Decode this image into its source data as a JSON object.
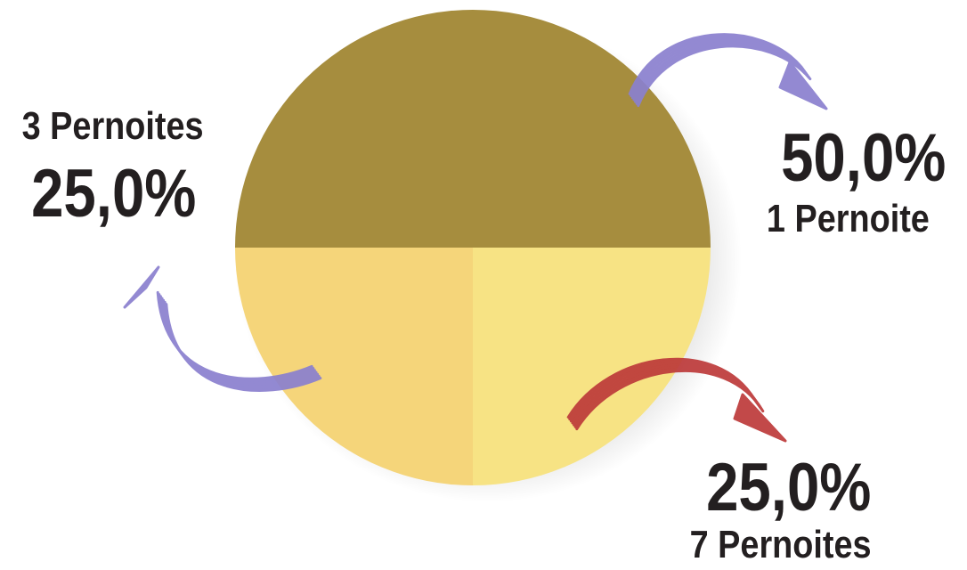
{
  "chart_data": {
    "type": "pie",
    "slices": [
      {
        "label": "1 Pernoite",
        "percent_text": "50,0%",
        "value": 50.0,
        "color": "#a68d3e",
        "arrow_color": "#8a80cf"
      },
      {
        "label": "7 Pernoites",
        "percent_text": "25,0%",
        "value": 25.0,
        "color": "#f7e384",
        "arrow_color": "#bd3a3a"
      },
      {
        "label": "3 Pernoites",
        "percent_text": "25,0%",
        "value": 25.0,
        "color": "#f5d57a",
        "arrow_color": "#8a80cf"
      }
    ],
    "start": "top-half",
    "legend": "none",
    "title": ""
  }
}
